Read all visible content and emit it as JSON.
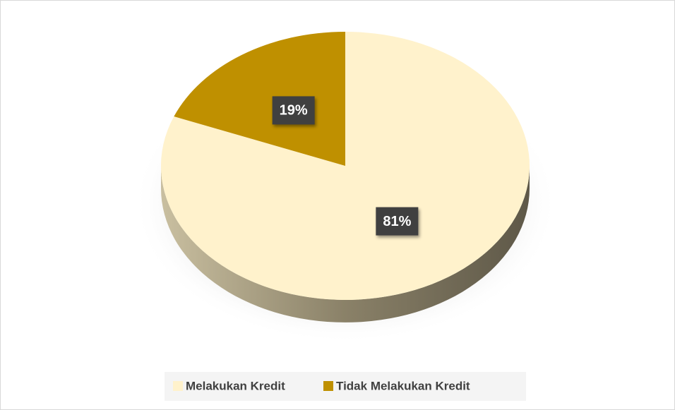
{
  "chart_data": {
    "type": "pie",
    "categories": [
      "Melakukan Kredit",
      "Tidak Melakukan Kredit"
    ],
    "values": [
      81,
      19
    ],
    "value_labels": [
      "81%",
      "19%"
    ],
    "colors": [
      "#fff2cc",
      "#bf9000"
    ],
    "legend": "bottom"
  }
}
